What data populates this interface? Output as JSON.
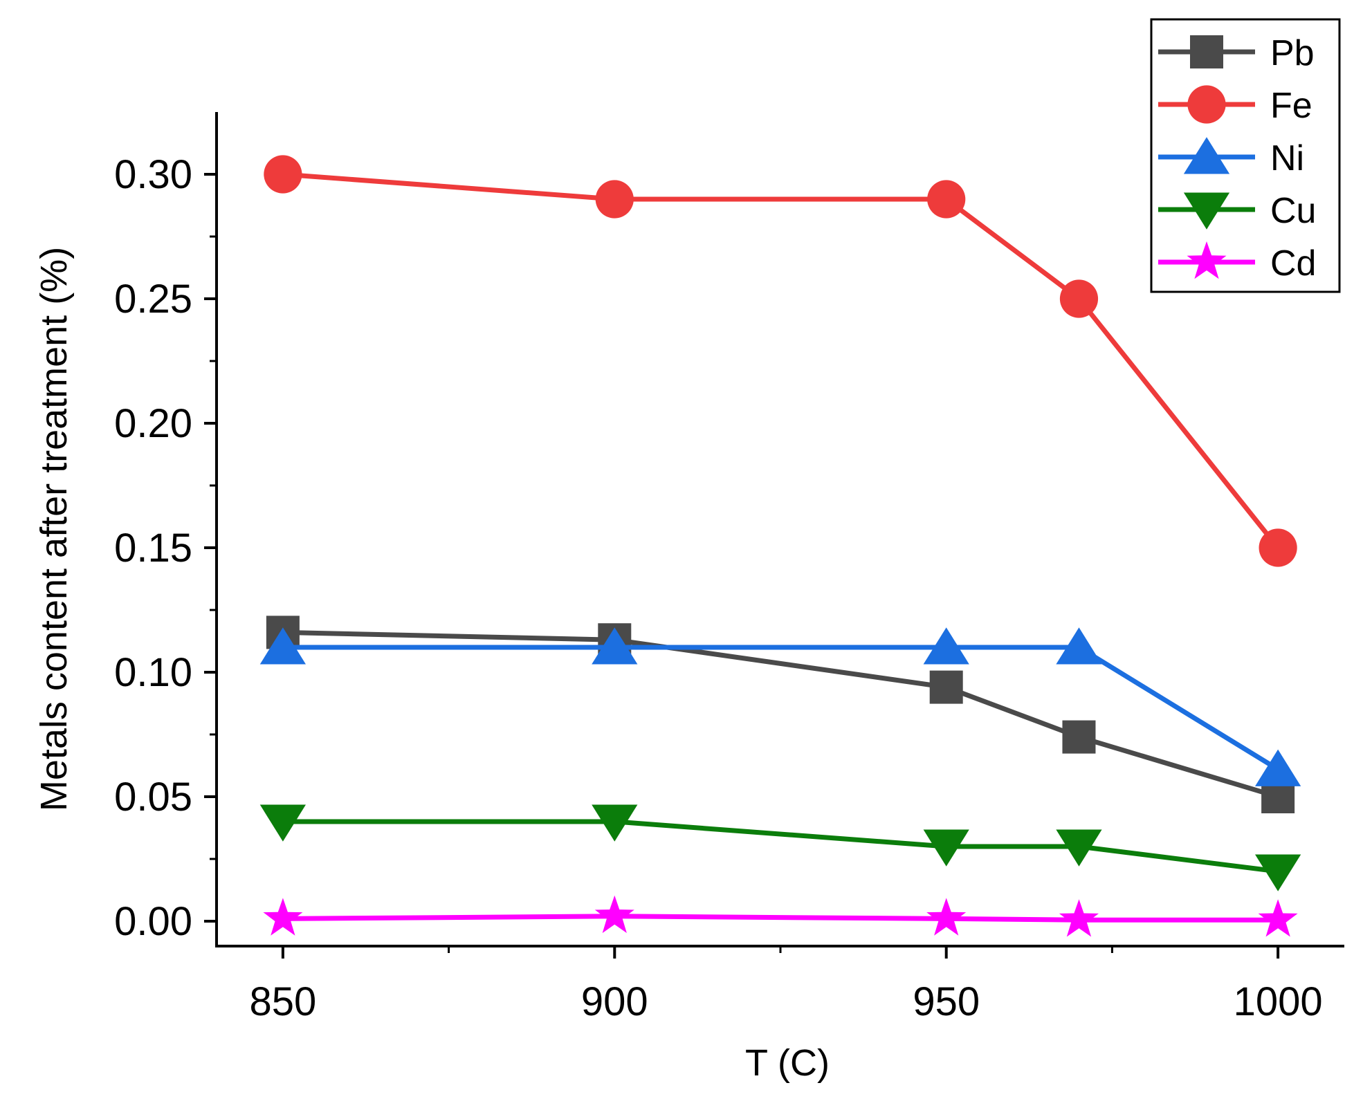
{
  "chart_data": {
    "type": "line",
    "title": "",
    "xlabel": "T (C)",
    "ylabel": "Metals content after treatment (%)",
    "xlim": [
      840,
      1010
    ],
    "ylim": [
      -0.01,
      0.325
    ],
    "xticks": [
      "850",
      "900",
      "950",
      "1000"
    ],
    "yticks": [
      "0.00",
      "0.05",
      "0.10",
      "0.15",
      "0.20",
      "0.25",
      "0.30"
    ],
    "x": [
      850,
      900,
      950,
      970,
      1000
    ],
    "legend_position": "top-right",
    "series": [
      {
        "name": "Pb",
        "values": [
          0.116,
          0.113,
          0.094,
          0.074,
          0.05
        ],
        "color": "#4a4a4a",
        "marker": "square"
      },
      {
        "name": "Fe",
        "values": [
          0.3,
          0.29,
          0.29,
          0.25,
          0.15
        ],
        "color": "#ee3b3b",
        "marker": "circle"
      },
      {
        "name": "Ni",
        "values": [
          0.11,
          0.11,
          0.11,
          0.11,
          0.061
        ],
        "color": "#1c6fe0",
        "marker": "triangle-up"
      },
      {
        "name": "Cu",
        "values": [
          0.04,
          0.04,
          0.03,
          0.03,
          0.02
        ],
        "color": "#0b7d0b",
        "marker": "triangle-down"
      },
      {
        "name": "Cd",
        "values": [
          0.001,
          0.002,
          0.001,
          0.0005,
          0.0005
        ],
        "color": "#ff00ff",
        "marker": "star"
      }
    ]
  }
}
